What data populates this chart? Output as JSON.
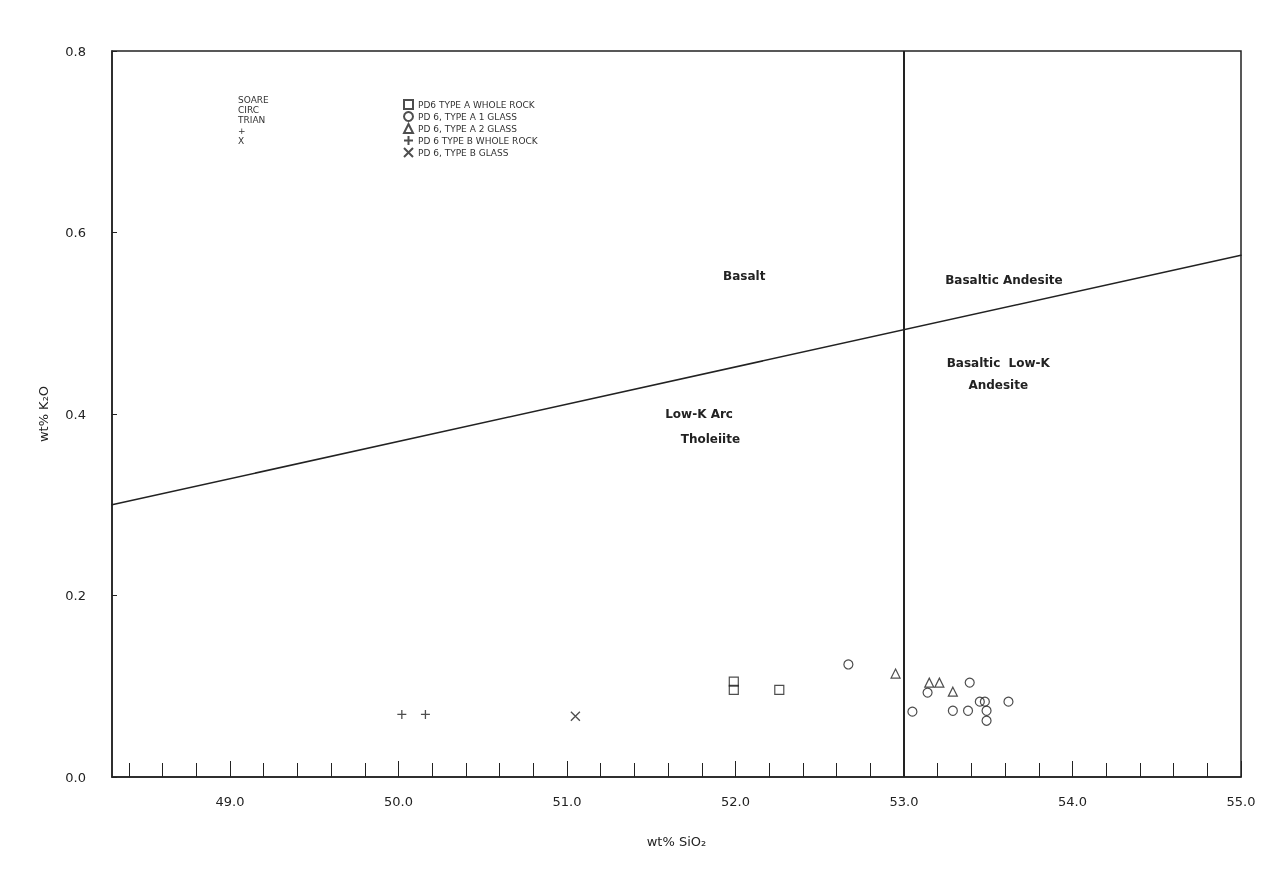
{
  "chart_data": {
    "type": "scatter",
    "xlabel": "wt% SiO₂",
    "ylabel": "wt% K₂O",
    "xlim": [
      48.3,
      55.0
    ],
    "xticks": [
      {
        "value": 49,
        "label": "49.0"
      },
      {
        "value": 50,
        "label": "50.0"
      },
      {
        "value": 51,
        "label": "51.0"
      },
      {
        "value": 52,
        "label": "52.0"
      },
      {
        "value": 53,
        "label": "53.0"
      },
      {
        "value": 54,
        "label": "54.0"
      },
      {
        "value": 55,
        "label": "55.0"
      }
    ],
    "ylim": [
      0,
      0.8
    ],
    "yticks": [
      {
        "value": 0,
        "label": "0.0"
      },
      {
        "value": 0.2,
        "label": "0.2"
      },
      {
        "value": 0.4,
        "label": "0.4"
      },
      {
        "value": 0.6,
        "label": "0.6"
      },
      {
        "value": 0.8,
        "label": "0.8"
      }
    ],
    "grid": false,
    "legend": "top left",
    "series": [
      {
        "name": "PD6 TYPE A WHOLE ROCK",
        "color": "#222222",
        "marker": "square",
        "x": [
          51.99,
          51.99,
          52.26
        ],
        "values": [
          0.105,
          0.096,
          0.096
        ]
      },
      {
        "name": "PD 6, TYPE A 1 GLASS",
        "color": "#222222",
        "marker": "circle",
        "x": [
          52.67,
          53.05,
          53.14,
          53.29,
          53.38,
          53.39,
          53.45,
          53.48,
          53.49,
          53.49,
          53.62
        ],
        "values": [
          0.124,
          0.072,
          0.093,
          0.073,
          0.073,
          0.104,
          0.083,
          0.083,
          0.073,
          0.062,
          0.083
        ]
      },
      {
        "name": "PD 6, TYPE A 2 GLASS",
        "color": "#222222",
        "marker": "triangle",
        "x": [
          52.95,
          53.15,
          53.21,
          53.29
        ],
        "values": [
          0.114,
          0.104,
          0.104,
          0.094
        ]
      },
      {
        "name": "PD 6 TYPE B WHOLE ROCK",
        "color": "#222222",
        "marker": "cross",
        "x": [
          50.02,
          50.16
        ],
        "values": [
          0.069,
          0.069
        ]
      },
      {
        "name": "PD 6, TYPE B GLASS",
        "color": "#222222",
        "marker": "x",
        "x": [
          51.05
        ],
        "values": [
          0.067
        ]
      },
      {
        "type": "line",
        "color": "#222222",
        "marker": "none",
        "line_style": "solid",
        "x": [
          48.3,
          55.0
        ],
        "values": [
          0.3,
          0.575
        ]
      }
    ],
    "ref_lines": [
      {
        "axis": "x",
        "value": 53,
        "label": null,
        "color": "#222222"
      }
    ],
    "annotations": [
      "SOARE",
      "CIRC",
      "TRIAN",
      "+",
      "X",
      "Basalt",
      "Basaltic Andesite",
      "Basaltic  Low-K",
      "Andesite",
      "Low-K Arc",
      "Tholeiite"
    ]
  }
}
